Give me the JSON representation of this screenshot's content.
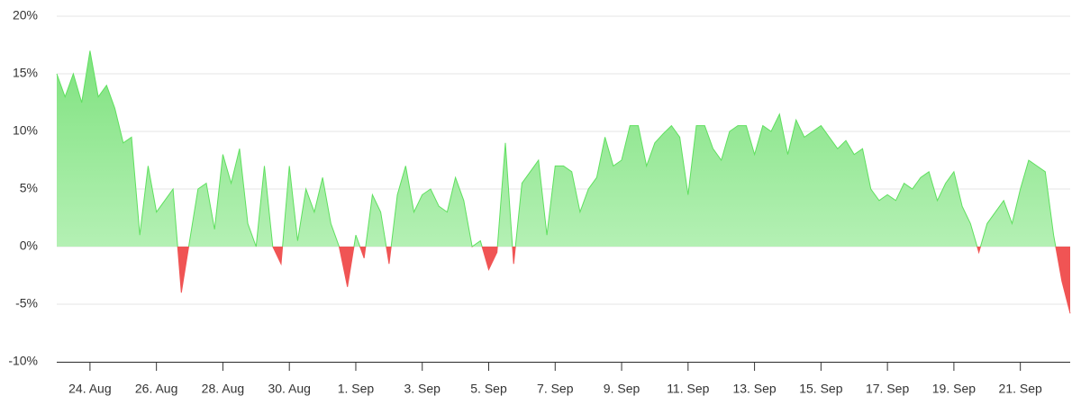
{
  "chart_data": {
    "type": "area",
    "values": [
      15,
      13,
      15,
      12.5,
      17,
      13,
      14,
      12,
      9,
      9.5,
      1,
      7,
      3,
      4,
      5,
      -4,
      0.5,
      5,
      5.5,
      1.5,
      8,
      5.5,
      8.5,
      2,
      0,
      7,
      0,
      -1.5,
      7,
      0.5,
      5,
      3,
      6,
      2,
      0,
      -3.5,
      1,
      -1,
      4.5,
      3,
      -1.5,
      4.5,
      7,
      3,
      4.5,
      5,
      3.5,
      3,
      6,
      4,
      0,
      0.5,
      -2,
      -0.5,
      9,
      -1.5,
      5.5,
      6.5,
      7.5,
      1,
      7,
      7,
      6.5,
      3,
      5,
      6,
      9.5,
      7,
      7.5,
      10.5,
      10.5,
      7,
      9,
      9.8,
      10.5,
      9.5,
      4.5,
      10.5,
      10.5,
      8.5,
      7.5,
      10,
      10.5,
      10.5,
      8,
      10.5,
      10,
      11.5,
      8,
      11,
      9.5,
      10,
      10.5,
      9.5,
      8.5,
      9.2,
      8,
      8.5,
      5,
      4,
      4.5,
      4,
      5.5,
      5,
      6,
      6.5,
      4,
      5.5,
      6.5,
      3.5,
      2,
      -0.5,
      2,
      3,
      4,
      2,
      5,
      7.5,
      7,
      6.5,
      1,
      -3,
      -5.8
    ],
    "color": "#5fe05f",
    "negative_color": "#f05454",
    "xlim": [
      0,
      122
    ],
    "xticks": [
      {
        "value": 4,
        "label": "24. Aug"
      },
      {
        "value": 12,
        "label": "26. Aug"
      },
      {
        "value": 20,
        "label": "28. Aug"
      },
      {
        "value": 28,
        "label": "30. Aug"
      },
      {
        "value": 36,
        "label": "1. Sep"
      },
      {
        "value": 44,
        "label": "3. Sep"
      },
      {
        "value": 52,
        "label": "5. Sep"
      },
      {
        "value": 60,
        "label": "7. Sep"
      },
      {
        "value": 68,
        "label": "9. Sep"
      },
      {
        "value": 76,
        "label": "11. Sep"
      },
      {
        "value": 84,
        "label": "13. Sep"
      },
      {
        "value": 92,
        "label": "15. Sep"
      },
      {
        "value": 100,
        "label": "17. Sep"
      },
      {
        "value": 108,
        "label": "19. Sep"
      },
      {
        "value": 116,
        "label": "21. Sep"
      }
    ],
    "ylim": [
      -10,
      20
    ],
    "yticks": [
      {
        "value": -10,
        "label": "-10%"
      },
      {
        "value": -5,
        "label": "-5%"
      },
      {
        "value": 0,
        "label": "0%"
      },
      {
        "value": 5,
        "label": "5%"
      },
      {
        "value": 10,
        "label": "10%"
      },
      {
        "value": 15,
        "label": "15%"
      },
      {
        "value": 20,
        "label": "20%"
      }
    ],
    "grid": true
  }
}
